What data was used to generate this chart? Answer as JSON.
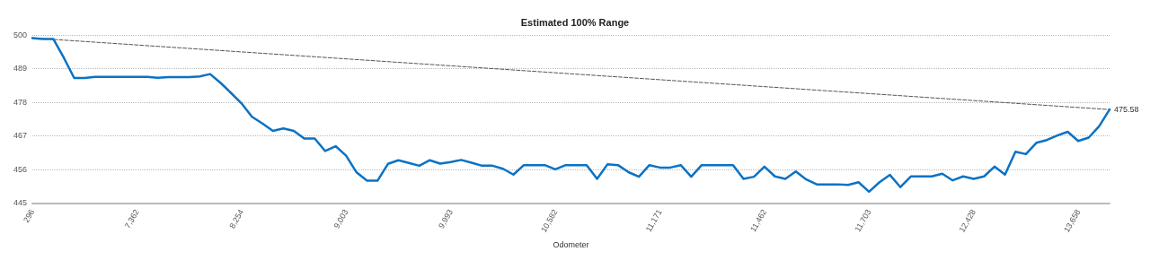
{
  "chart_data": {
    "type": "line",
    "title": "Estimated 100% Range",
    "xlabel": "Odometer",
    "categories": [
      "296",
      null,
      null,
      null,
      null,
      null,
      null,
      null,
      null,
      null,
      "7,362",
      null,
      null,
      null,
      null,
      null,
      null,
      null,
      null,
      null,
      "8,254",
      null,
      null,
      null,
      null,
      null,
      null,
      null,
      null,
      null,
      "9,003",
      null,
      null,
      null,
      null,
      null,
      null,
      null,
      null,
      null,
      "9,993",
      null,
      null,
      null,
      null,
      null,
      null,
      null,
      null,
      null,
      "10,582",
      null,
      null,
      null,
      null,
      null,
      null,
      null,
      null,
      null,
      "11,171",
      null,
      null,
      null,
      null,
      null,
      null,
      null,
      null,
      null,
      "11,462",
      null,
      null,
      null,
      null,
      null,
      null,
      null,
      null,
      null,
      "11,703",
      null,
      null,
      null,
      null,
      null,
      null,
      null,
      null,
      null,
      "12,428",
      null,
      null,
      null,
      null,
      null,
      null,
      null,
      null,
      null,
      "13,658",
      null,
      null,
      null
    ],
    "series": [
      {
        "color": "#0a72c4",
        "line_style": "solid",
        "values": [
          499.0,
          498.7,
          498.7,
          492.6,
          485.9,
          485.9,
          486.3,
          486.3,
          486.3,
          486.3,
          486.3,
          486.3,
          486.0,
          486.2,
          486.2,
          486.2,
          486.4,
          487.2,
          484.3,
          481.0,
          477.6,
          473.2,
          471.0,
          468.6,
          469.4,
          468.6,
          466.1,
          466.1,
          462.0,
          463.6,
          460.5,
          455.0,
          452.3,
          452.3,
          457.8,
          459.0,
          458.1,
          457.2,
          459.0,
          457.9,
          458.4,
          459.1,
          458.2,
          457.2,
          457.2,
          456.2,
          454.3,
          457.4,
          457.4,
          457.4,
          456.0,
          457.4,
          457.4,
          457.4,
          452.9,
          457.7,
          457.4,
          455.1,
          453.6,
          457.4,
          456.6,
          456.6,
          457.4,
          453.6,
          457.4,
          457.4,
          457.4,
          457.4,
          452.9,
          453.6,
          456.9,
          453.7,
          452.9,
          455.3,
          452.7,
          451.1,
          451.1,
          451.1,
          450.9,
          451.8,
          448.7,
          451.8,
          454.2,
          450.2,
          453.7,
          453.7,
          453.7,
          454.6,
          452.4,
          453.7,
          452.9,
          453.7,
          456.9,
          454.3,
          461.8,
          461.0,
          464.7,
          465.6,
          467.1,
          468.3,
          465.3,
          466.4,
          470.1,
          475.6
        ]
      },
      {
        "color": "#555555",
        "line_style": "dashed",
        "values": [
          499.0,
          null,
          null,
          null,
          null,
          null,
          null,
          null,
          null,
          null,
          null,
          null,
          null,
          null,
          null,
          null,
          null,
          null,
          null,
          null,
          null,
          null,
          null,
          null,
          null,
          null,
          null,
          null,
          null,
          null,
          null,
          null,
          null,
          null,
          null,
          null,
          null,
          null,
          null,
          null,
          null,
          null,
          null,
          null,
          null,
          null,
          null,
          null,
          null,
          null,
          null,
          null,
          null,
          null,
          null,
          null,
          null,
          null,
          null,
          null,
          null,
          null,
          null,
          null,
          null,
          null,
          null,
          null,
          null,
          null,
          null,
          null,
          null,
          null,
          null,
          null,
          null,
          null,
          null,
          null,
          null,
          null,
          null,
          null,
          null,
          null,
          null,
          null,
          null,
          null,
          null,
          null,
          null,
          null,
          null,
          null,
          null,
          null,
          null,
          null,
          null,
          null,
          null,
          475.58
        ],
        "value_labels": [
          null,
          null,
          null,
          null,
          null,
          null,
          null,
          null,
          null,
          null,
          null,
          null,
          null,
          null,
          null,
          null,
          null,
          null,
          null,
          null,
          null,
          null,
          null,
          null,
          null,
          null,
          null,
          null,
          null,
          null,
          null,
          null,
          null,
          null,
          null,
          null,
          null,
          null,
          null,
          null,
          null,
          null,
          null,
          null,
          null,
          null,
          null,
          null,
          null,
          null,
          null,
          null,
          null,
          null,
          null,
          null,
          null,
          null,
          null,
          null,
          null,
          null,
          null,
          null,
          null,
          null,
          null,
          null,
          null,
          null,
          null,
          null,
          null,
          null,
          null,
          null,
          null,
          null,
          null,
          null,
          null,
          null,
          null,
          null,
          null,
          null,
          null,
          null,
          null,
          null,
          null,
          null,
          null,
          null,
          null,
          null,
          null,
          null,
          null,
          null,
          null,
          null,
          null,
          "475.58"
        ]
      }
    ],
    "ylim": [
      445,
      500
    ],
    "yticks": [
      445,
      456,
      467,
      478,
      489,
      500
    ],
    "grid": "y",
    "marker": "none"
  }
}
